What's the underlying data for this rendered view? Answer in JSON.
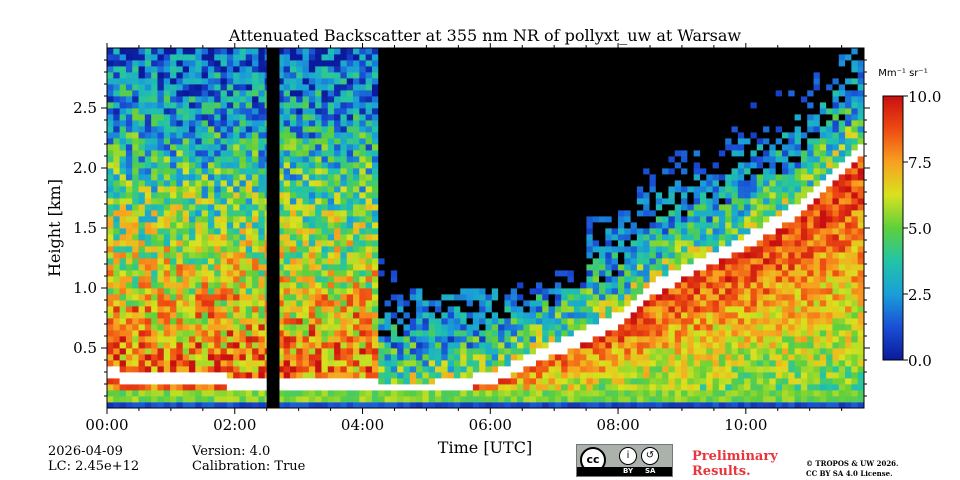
{
  "chart_data": {
    "type": "heatmap",
    "title": "Attenuated Backscatter at 355 nm NR of pollyxt_uw at Warsaw",
    "xlabel": "Time [UTC]",
    "ylabel": "Height [km]",
    "x_ticks": [
      "00:00",
      "02:00",
      "04:00",
      "06:00",
      "08:00",
      "10:00"
    ],
    "x_tick_hours": [
      0,
      2,
      4,
      6,
      8,
      10
    ],
    "xlim_hours": [
      0,
      11.85
    ],
    "y_ticks": [
      "0.5",
      "1.0",
      "1.5",
      "2.0",
      "2.5"
    ],
    "y_tick_values": [
      0.5,
      1.0,
      1.5,
      2.0,
      2.5
    ],
    "ylim_km": [
      0,
      3.0
    ],
    "colorbar": {
      "unit_label": "Mm⁻¹ sr⁻¹",
      "tick_labels": [
        "0.0",
        "2.5",
        "5.0",
        "7.5",
        "10.0"
      ],
      "tick_values": [
        0.0,
        2.5,
        5.0,
        7.5,
        10.0
      ],
      "range": [
        0.0,
        10.0
      ],
      "colormap": [
        "#0a1a9a",
        "#1a4fd6",
        "#1a9fd8",
        "#22c4a8",
        "#5fcf3c",
        "#d9e21e",
        "#f8a020",
        "#ee4a12",
        "#c81010"
      ]
    },
    "features": {
      "data_gap_hours": [
        2.5,
        2.7
      ],
      "boundary_layer_top_km": [
        [
          0.0,
          0.28
        ],
        [
          1.0,
          0.25
        ],
        [
          2.0,
          0.22
        ],
        [
          3.0,
          0.2
        ],
        [
          4.0,
          0.18
        ],
        [
          5.0,
          0.16
        ],
        [
          6.0,
          0.25
        ],
        [
          7.0,
          0.5
        ],
        [
          8.0,
          0.75
        ],
        [
          8.5,
          1.0
        ],
        [
          9.0,
          1.15
        ],
        [
          10.0,
          1.4
        ],
        [
          11.0,
          1.75
        ],
        [
          11.85,
          2.2
        ]
      ]
    }
  },
  "footer": {
    "date": "2026-04-09",
    "lidar_constant": "LC: 2.45e+12",
    "version": "Version: 4.0",
    "calibration": "Calibration: True",
    "preliminary_line1": "Preliminary",
    "preliminary_line2": "Results.",
    "copyright_line1": "© TROPOS & UW 2026.",
    "copyright_line2": "CC BY SA 4.0 License."
  },
  "license_badge": {
    "cc": "cc",
    "by": "BY",
    "sa": "SA"
  }
}
